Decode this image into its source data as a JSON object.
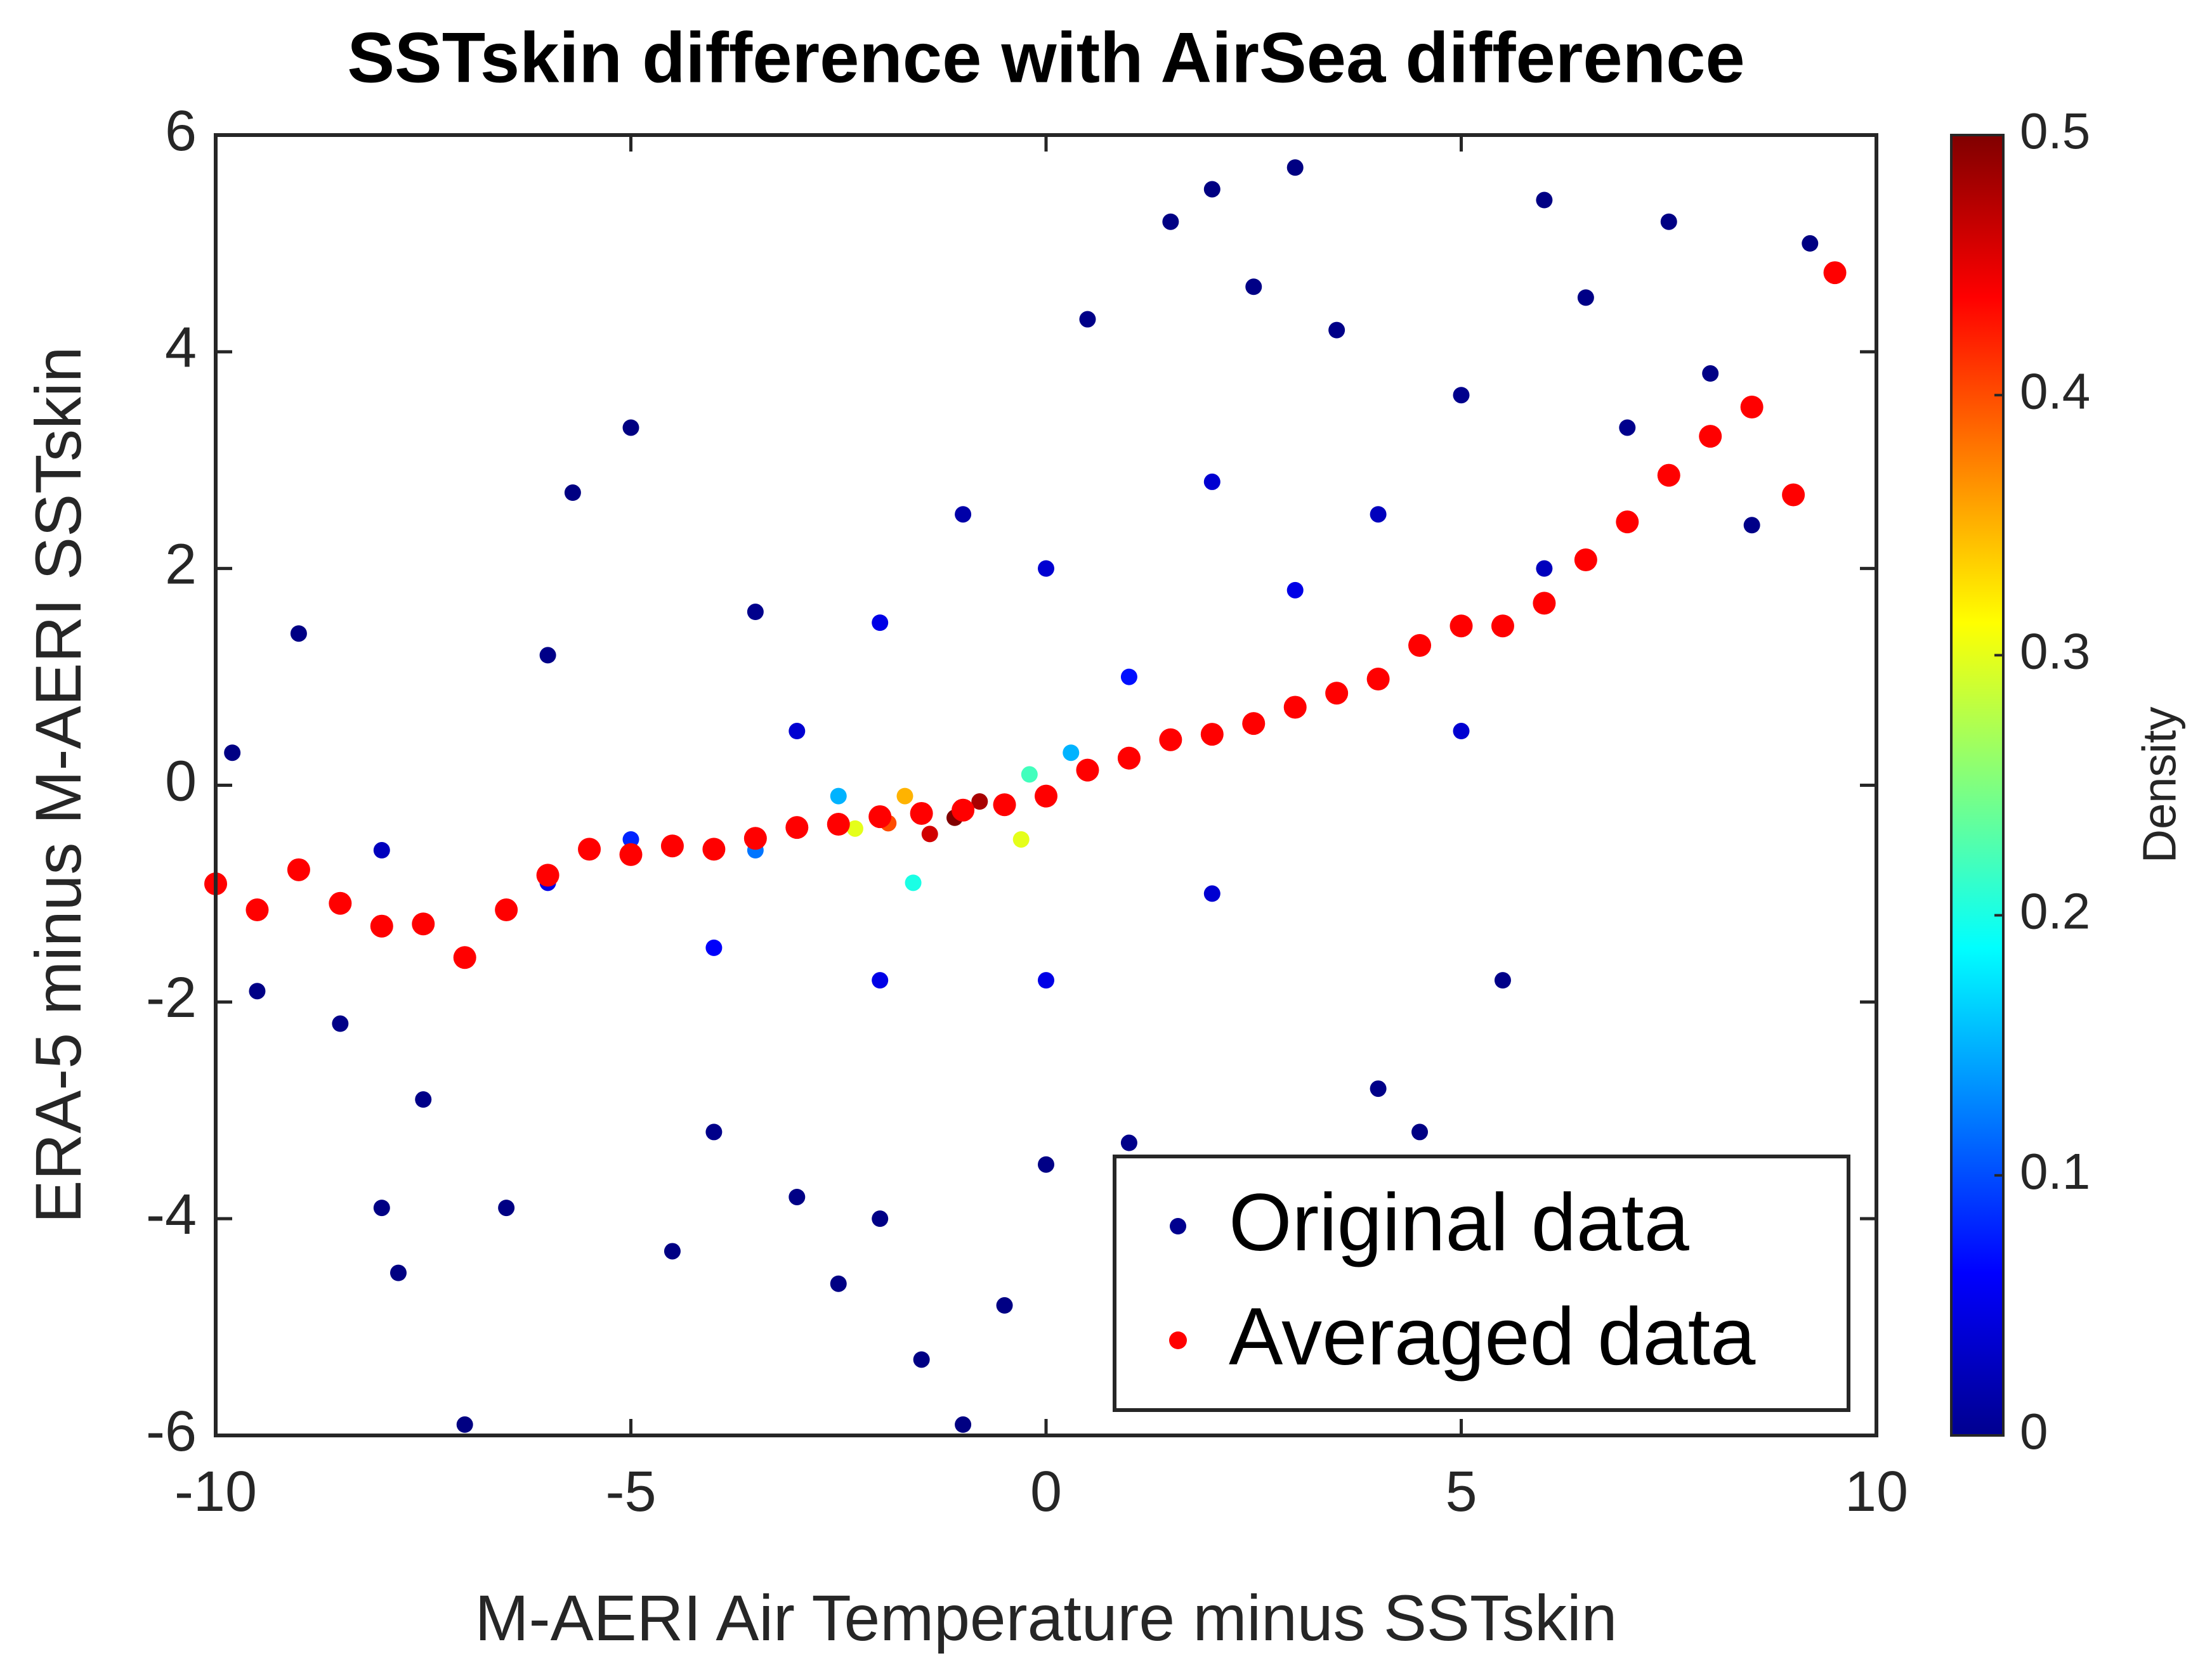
{
  "chart_data": {
    "type": "scatter",
    "title": "SSTskin difference with AirSea difference",
    "xlabel": "M-AERI Air Temperature minus SSTskin",
    "ylabel": "ERA-5 minus M-AERI SSTskin",
    "xlim": [
      -10,
      10
    ],
    "xticks": [
      -10,
      -5,
      0,
      5,
      10
    ],
    "ylim": [
      -6,
      6
    ],
    "yticks": [
      -6,
      -4,
      -2,
      0,
      2,
      4,
      6
    ],
    "legend": "lower right",
    "colorbar": {
      "label": "Density",
      "lim": [
        0,
        0.5
      ],
      "ticks": [
        0,
        0.1,
        0.2,
        0.3,
        0.4,
        0.5
      ],
      "colormap": "jet"
    },
    "series": [
      {
        "name": "Original data",
        "color": "#00008f",
        "x": [
          -9.8,
          -9.5,
          -9,
          -8.5,
          -8,
          -7.8,
          -7,
          -7.5,
          -6.5,
          -6,
          -5.7,
          -5,
          -4.5,
          -4,
          -3.5,
          -3,
          -2.5,
          -2,
          -1.5,
          -1,
          -0.5,
          0,
          0.5,
          1,
          1.5,
          2,
          2.5,
          3,
          3.5,
          4,
          4.5,
          5,
          5.5,
          6,
          6.5,
          7,
          7.5,
          8,
          8.5,
          9,
          9.2,
          -8,
          -6,
          -4,
          -3,
          -2,
          -1,
          0,
          1,
          2,
          3,
          4,
          5,
          6,
          -2,
          0,
          2,
          -5,
          -3.5,
          -2.5,
          0.3,
          -1.6,
          -0.2,
          -2.3,
          -0.3,
          -1.7,
          -1.9,
          -0.5,
          -1.4,
          -0.8,
          -1.1
        ],
        "values": [
          0.3,
          -1.9,
          1.4,
          -2.2,
          -3.9,
          -4.5,
          -5.9,
          -2.9,
          -3.9,
          1.2,
          2.7,
          3.3,
          -4.3,
          -3.2,
          1.6,
          -3.8,
          -4.6,
          -4,
          -5.3,
          -5.9,
          -4.8,
          -3.5,
          4.3,
          -3.3,
          5.2,
          5.5,
          4.6,
          5.7,
          4.2,
          -2.8,
          -3.2,
          3.6,
          -1.8,
          5.4,
          4.5,
          3.3,
          5.2,
          3.8,
          2.4,
          2.7,
          5,
          -0.6,
          -0.9,
          -1.5,
          0.5,
          1.5,
          2.5,
          2,
          1,
          2.8,
          1.8,
          2.5,
          0.5,
          2,
          -1.8,
          -1.8,
          -1,
          -0.5,
          -0.6,
          -0.1,
          0.3,
          -0.9,
          0.1,
          -0.4,
          -0.5,
          -0.1,
          -0.35,
          -0.2,
          -0.45,
          -0.15,
          -0.3
        ],
        "density": [
          0.002,
          0.003,
          0.002,
          0.004,
          0.002,
          0.001,
          0.001,
          0.004,
          0.002,
          0.004,
          0.001,
          0.001,
          0.002,
          0.005,
          0.006,
          0.003,
          0.002,
          0.003,
          0.002,
          0.001,
          0.002,
          0.003,
          0.004,
          0.005,
          0.002,
          0.001,
          0.003,
          0.001,
          0.004,
          0.004,
          0.002,
          0.006,
          0.004,
          0.002,
          0.003,
          0.006,
          0.002,
          0.003,
          0.004,
          0.003,
          0.001,
          0.03,
          0.05,
          0.06,
          0.04,
          0.05,
          0.02,
          0.04,
          0.07,
          0.04,
          0.05,
          0.03,
          0.04,
          0.03,
          0.05,
          0.05,
          0.04,
          0.08,
          0.12,
          0.15,
          0.15,
          0.2,
          0.22,
          0.3,
          0.3,
          0.35,
          0.4,
          0.42,
          0.46,
          0.48,
          0.5
        ]
      },
      {
        "name": "Averaged data",
        "color": "#ff0000",
        "x": [
          -10,
          -9.5,
          -9,
          -8.5,
          -8,
          -7.5,
          -7,
          -6.5,
          -6,
          -5.5,
          -5,
          -4.5,
          -4,
          -3.5,
          -3,
          -2.5,
          -2,
          -1.5,
          -1,
          -0.5,
          0,
          0.5,
          1,
          1.5,
          2,
          2.5,
          3,
          3.5,
          4,
          4.5,
          5,
          5.5,
          6,
          6.5,
          7,
          7.5,
          8,
          8.5,
          9,
          9.5
        ],
        "values": [
          -0.91,
          -1.15,
          -0.78,
          -1.09,
          -1.3,
          -1.28,
          -1.59,
          -1.15,
          -0.83,
          -0.59,
          -0.64,
          -0.56,
          -0.59,
          -0.49,
          -0.39,
          -0.36,
          -0.29,
          -0.26,
          -0.23,
          -0.18,
          -0.1,
          0.14,
          0.25,
          0.42,
          0.47,
          0.57,
          0.72,
          0.85,
          0.98,
          1.29,
          1.47,
          1.47,
          1.68,
          2.08,
          2.43,
          2.86,
          3.22,
          3.49,
          2.68,
          4.73
        ]
      }
    ]
  }
}
